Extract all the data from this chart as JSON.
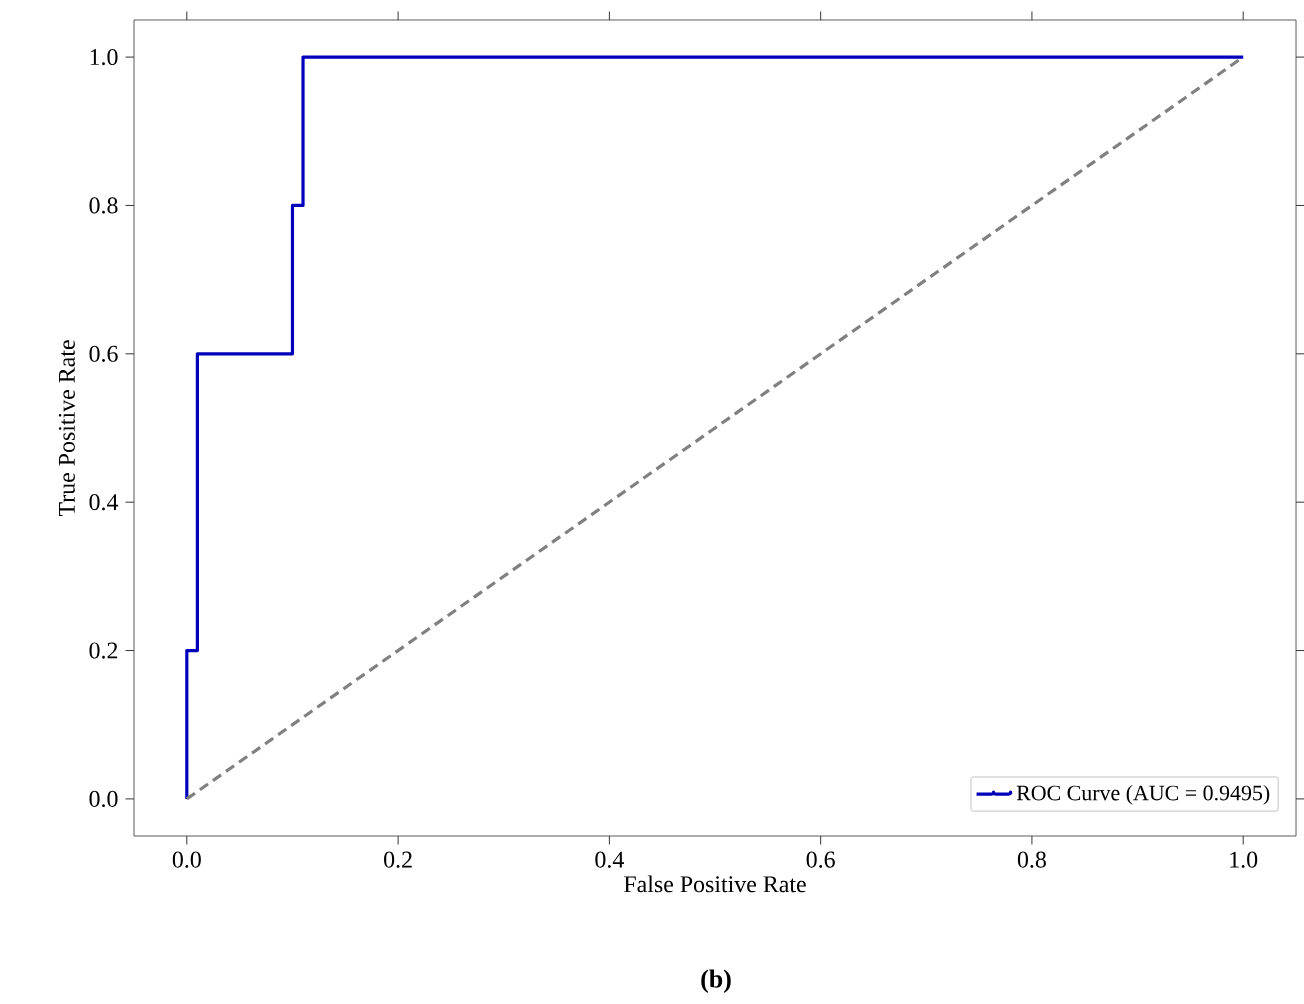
{
  "chart_data": {
    "type": "step",
    "xlabel": "False Positive Rate",
    "ylabel": "True Positive Rate",
    "xlim": [
      -0.05,
      1.05
    ],
    "ylim": [
      -0.05,
      1.05
    ],
    "xticks": [
      {
        "value": 0,
        "label": "0.0"
      },
      0.2,
      0.4,
      0.6,
      0.8,
      {
        "value": 1,
        "label": "1.0"
      }
    ],
    "yticks": [
      {
        "value": 0,
        "label": "0.0"
      },
      0.2,
      0.4,
      0.6,
      0.8,
      {
        "value": 1,
        "label": "1.0"
      }
    ],
    "series": [
      {
        "name": "ROC Curve (AUC = 0.9495)",
        "color": "#0000bb",
        "x": [
          0,
          0,
          0.01,
          0.01,
          0.1,
          0.1,
          0.11,
          0.11,
          1
        ],
        "values": [
          0,
          0.2,
          0.2,
          0.6,
          0.6,
          0.8,
          0.8,
          1,
          1
        ]
      },
      {
        "type": "line",
        "color": "#808080",
        "line_style": "dashed",
        "x": [
          0,
          1
        ],
        "values": [
          0,
          1
        ]
      }
    ],
    "legend": "bottom right",
    "grid": false,
    "annotations": [
      "**(b)**"
    ]
  }
}
